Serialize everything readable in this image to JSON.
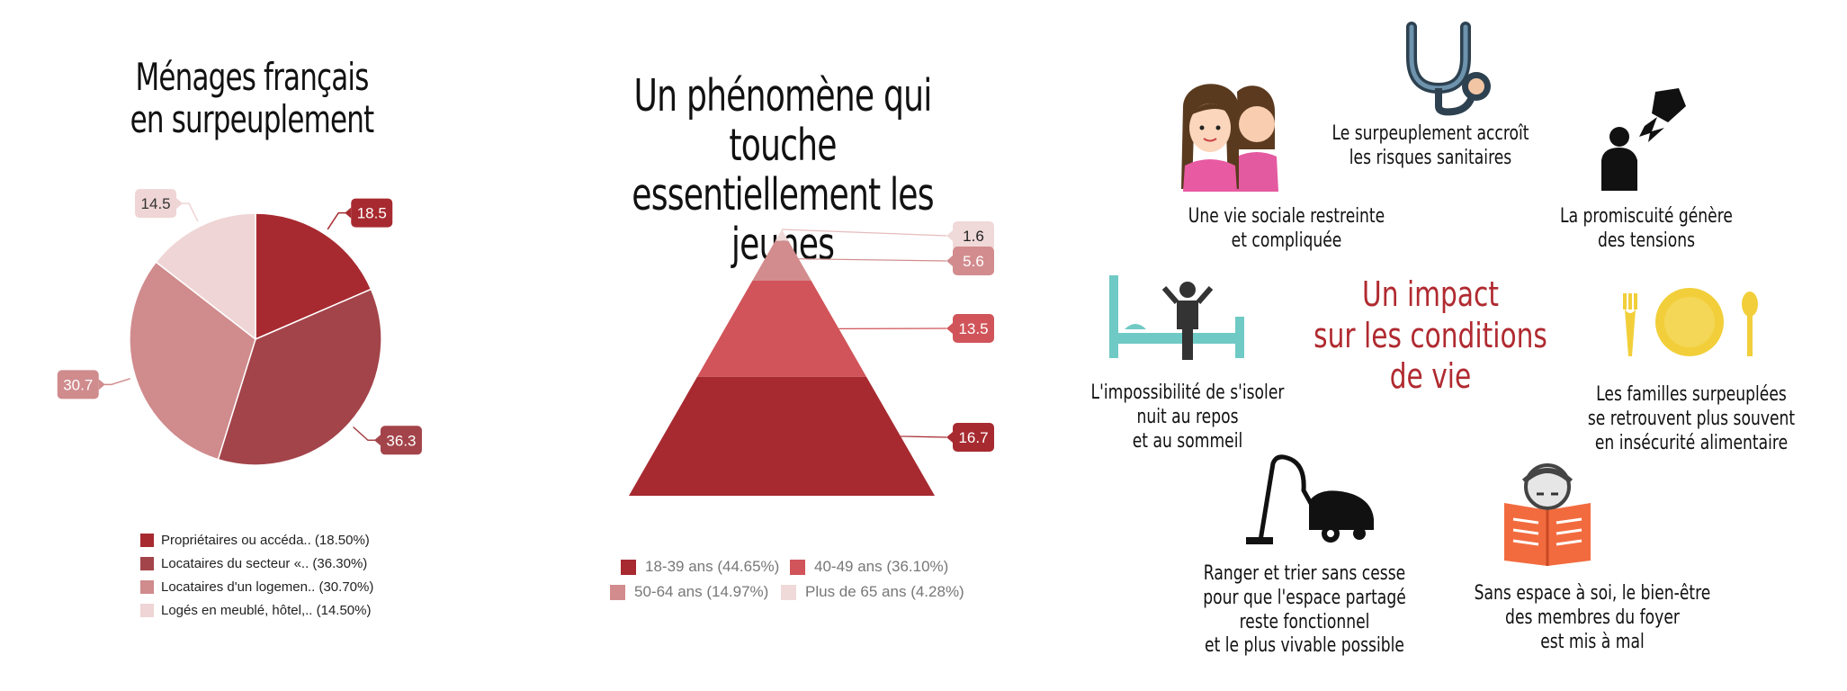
{
  "pie": {
    "title": "Ménages français\nen surpeuplement"
  },
  "pyramid": {
    "title": "Un phénomène qui touche\nessentiellement les jeunes"
  },
  "chart_data": [
    {
      "type": "pie",
      "title": "Ménages français en surpeuplement",
      "slices": [
        {
          "label": "Propriétaires ou accéda.. (18.50%)",
          "value": 18.5,
          "color": "#a72a30"
        },
        {
          "label": "Locataires du secteur «.. (36.30%)",
          "value": 36.3,
          "color": "#a3444a"
        },
        {
          "label": "Locataires d'un logemen.. (30.70%)",
          "value": 30.7,
          "color": "#d08b8d"
        },
        {
          "label": "Logés en meublé, hôtel,.. (14.50%)",
          "value": 14.5,
          "color": "#efd5d5"
        }
      ],
      "data_labels": [
        "18.5",
        "36.3",
        "30.7",
        "14.5"
      ],
      "legend": "bottom"
    },
    {
      "type": "pyramid",
      "title": "Un phénomène qui touche essentiellement les jeunes",
      "slices": [
        {
          "label": "18-39 ans (44.65%)",
          "value": 16.7,
          "color": "#a72a30"
        },
        {
          "label": "40-49 ans (36.10%)",
          "value": 13.5,
          "color": "#d05459"
        },
        {
          "label": "50-64 ans (14.97%)",
          "value": 5.6,
          "color": "#d28c8e"
        },
        {
          "label": "Plus de 65 ans (4.28%)",
          "value": 1.6,
          "color": "#f0d9d9"
        }
      ],
      "data_labels": [
        "16.7",
        "13.5",
        "5.6",
        "1.6"
      ],
      "legend": "bottom"
    }
  ],
  "impact": {
    "title": "Un impact\nsur les conditions\nde vie",
    "captions": {
      "social": "Une vie sociale restreinte\net compliquée",
      "sante": "Le surpeuplement accroît\nles risques sanitaires",
      "tensions": "La promiscuité génère\ndes tensions",
      "isoler": "L'impossibilité de s'isoler\nnuit au repos\net au sommeil",
      "alimentaire": "Les familles surpeuplées\nse retrouvent plus souvent\nen insécurité alimentaire",
      "ranger": "Ranger et trier sans cesse\npour que l'espace partagé\nreste fonctionnel\net le plus vivable possible",
      "espace": "Sans espace à soi, le bien-être\ndes membres du foyer\nest mis à mal"
    }
  }
}
